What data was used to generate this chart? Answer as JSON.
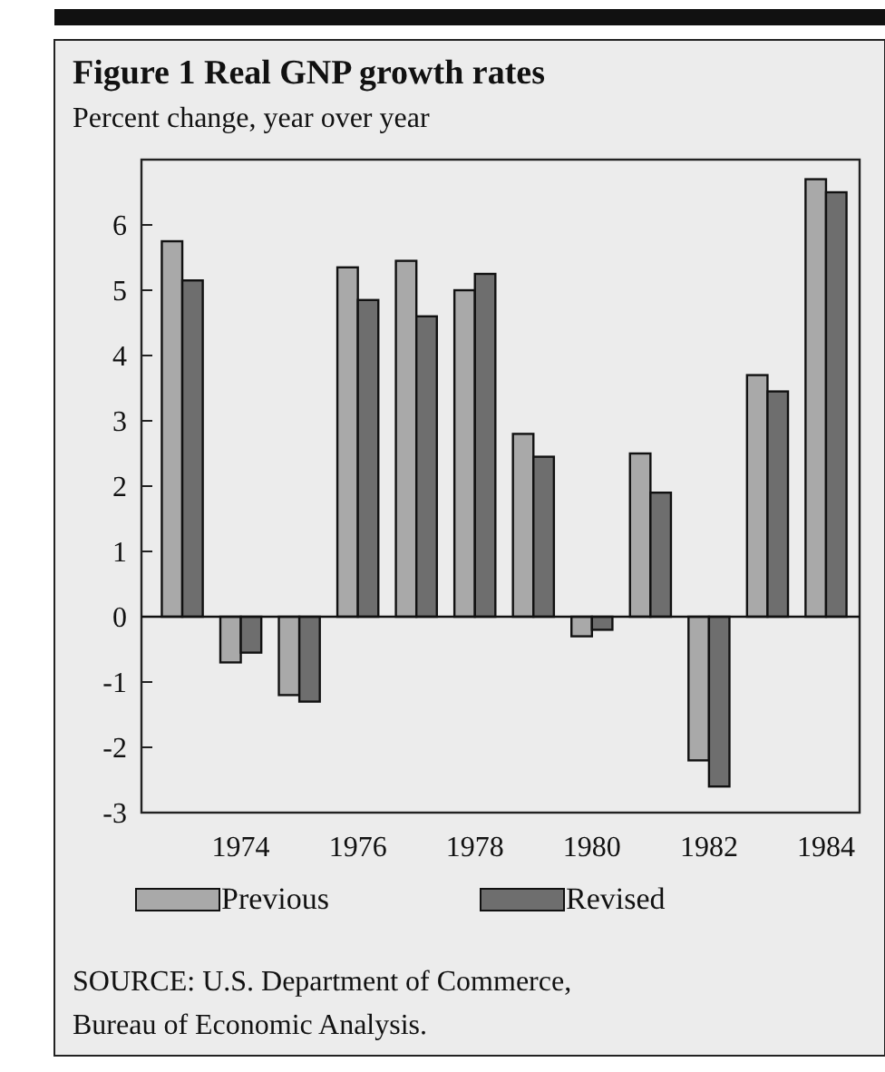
{
  "chart_data": {
    "type": "bar",
    "title": "Figure 1  Real GNP growth rates",
    "subtitle": "Percent change, year over year",
    "categories": [
      null,
      "1974",
      null,
      "1976",
      null,
      "1978",
      null,
      "1980",
      null,
      "1982",
      null,
      "1984"
    ],
    "series": [
      {
        "name": "Previous",
        "color": "#a9a9a9",
        "values": [
          5.75,
          -0.7,
          -1.2,
          5.35,
          5.45,
          5.0,
          2.8,
          -0.3,
          2.5,
          -2.2,
          3.7,
          6.7
        ]
      },
      {
        "name": "Revised",
        "color": "#6e6e6e",
        "values": [
          5.15,
          -0.55,
          -1.3,
          4.85,
          4.6,
          5.25,
          2.45,
          -0.2,
          1.9,
          -2.6,
          3.45,
          6.5
        ]
      }
    ],
    "ylim": [
      -3,
      7
    ],
    "yticks": [
      -3,
      -2,
      -1,
      0,
      1,
      2,
      3,
      4,
      5,
      6
    ],
    "legend": "bottom",
    "annotations": [
      "SOURCE: U.S. Department of Commerce,",
      "Bureau of Economic Analysis."
    ]
  }
}
